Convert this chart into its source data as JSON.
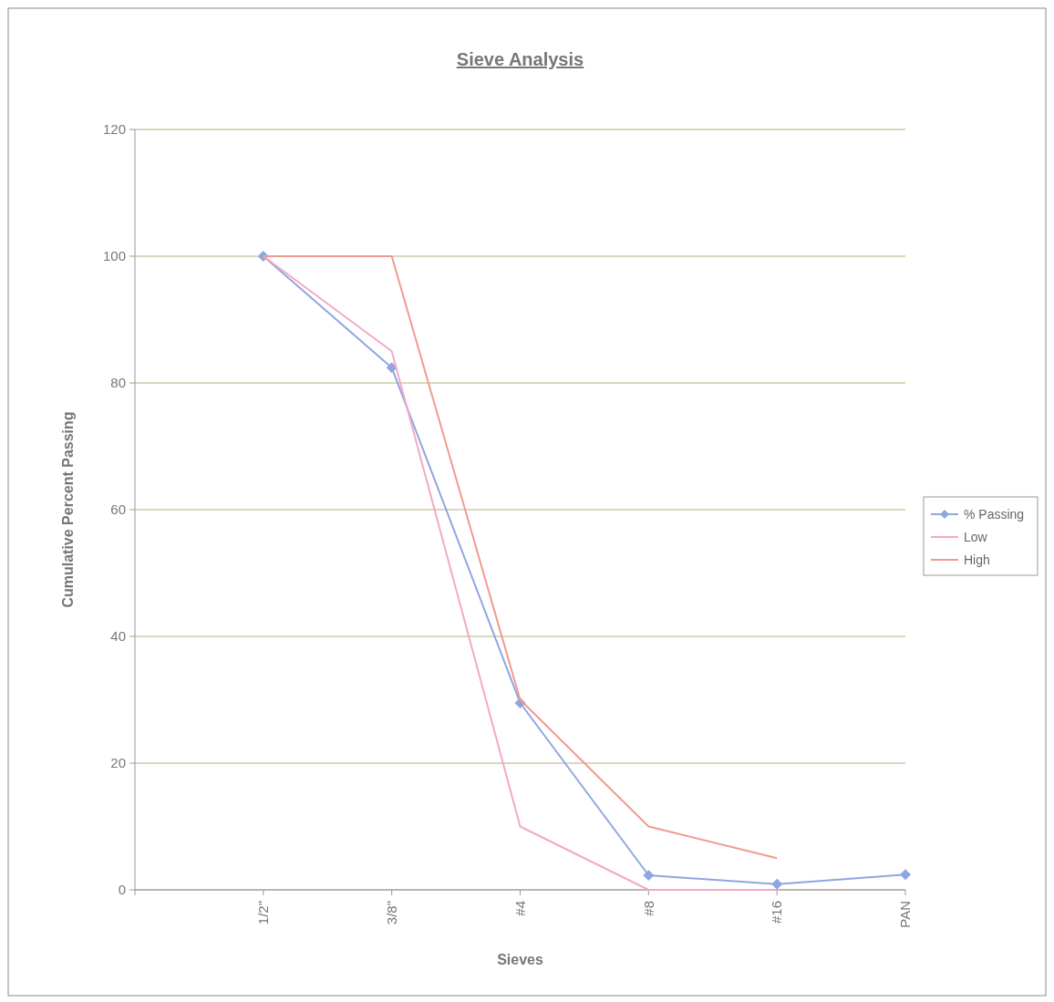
{
  "chart_data": {
    "type": "line",
    "title": "Sieve Analysis",
    "xlabel": "Sieves",
    "ylabel": "Cumulative Percent Passing",
    "categories": [
      null,
      "1/2\"",
      "3/8\"",
      "#4",
      "#8",
      "#16",
      "PAN"
    ],
    "series": [
      {
        "name": "% Passing",
        "color": "#8fa6e0",
        "values": [
          null,
          100,
          82.4,
          29.5,
          2.3,
          0.9,
          2.4
        ],
        "marker": "diamond"
      },
      {
        "name": "Low",
        "color": "#f4a8c8",
        "values": [
          null,
          100,
          85,
          10,
          0,
          0,
          null
        ],
        "marker": "none"
      },
      {
        "name": "High",
        "color": "#f29a8e",
        "values": [
          null,
          100,
          100,
          30,
          10,
          5,
          null
        ],
        "marker": "none"
      }
    ],
    "ylim": [
      0,
      120
    ],
    "yticks": [
      0,
      20,
      40,
      60,
      80,
      100,
      120
    ],
    "grid": "y",
    "legend": "right",
    "line_style": "solid"
  }
}
